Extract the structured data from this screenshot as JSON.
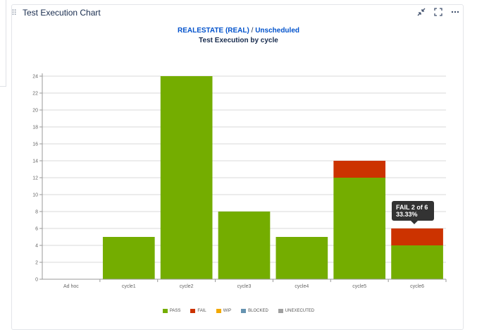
{
  "panel": {
    "title": "Test Execution Chart",
    "icons": [
      "collapse-icon",
      "fullscreen-icon",
      "more-icon"
    ]
  },
  "header": {
    "project": "REALESTATE (REAL)",
    "separator": " / ",
    "version": "Unscheduled",
    "subtitle": "Test Execution by cycle"
  },
  "tooltip": {
    "line1": "FAIL 2 of 6",
    "line2": "33.33%"
  },
  "chart_data": {
    "type": "bar",
    "stacked": true,
    "categories": [
      "Ad hoc",
      "cycle1",
      "cycle2",
      "cycle3",
      "cycle4",
      "cycle5",
      "cycle6"
    ],
    "series": [
      {
        "name": "PASS",
        "color": "#74ad00",
        "values": [
          0,
          5,
          24,
          8,
          5,
          12,
          4
        ]
      },
      {
        "name": "FAIL",
        "color": "#cc3300",
        "values": [
          0,
          0,
          0,
          0,
          0,
          2,
          2
        ]
      },
      {
        "name": "WIP",
        "color": "#f2a800",
        "values": [
          0,
          0,
          0,
          0,
          0,
          0,
          0
        ]
      },
      {
        "name": "BLOCKED",
        "color": "#6693b0",
        "values": [
          0,
          0,
          0,
          0,
          0,
          0,
          0
        ]
      },
      {
        "name": "UNEXECUTED",
        "color": "#a0a0a0",
        "values": [
          0,
          0,
          0,
          0,
          0,
          0,
          0
        ]
      }
    ],
    "ylim": [
      0,
      24
    ],
    "yticks": [
      0,
      2,
      4,
      6,
      8,
      10,
      12,
      14,
      16,
      18,
      20,
      22,
      24
    ],
    "grid": true,
    "legend": "bottom"
  }
}
